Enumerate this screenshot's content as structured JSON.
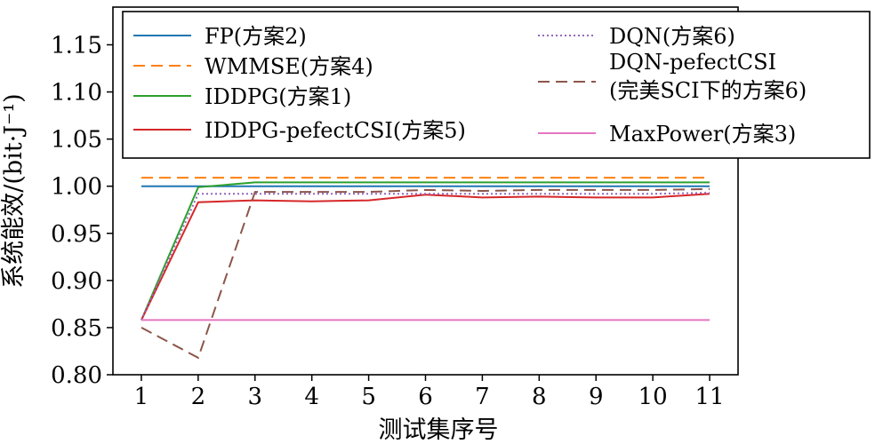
{
  "chart_data": {
    "type": "line",
    "title": "",
    "xlabel": "测试集序号",
    "ylabel": "系统能效/(bit·J⁻¹)",
    "x": [
      1,
      2,
      3,
      4,
      5,
      6,
      7,
      8,
      9,
      10,
      11
    ],
    "xlim": [
      0.5,
      11.5
    ],
    "ylim": [
      0.8,
      1.19
    ],
    "x_ticks": [
      "1",
      "2",
      "3",
      "4",
      "5",
      "6",
      "7",
      "8",
      "9",
      "10",
      "11"
    ],
    "y_ticks": [
      "0.80",
      "0.85",
      "0.90",
      "0.95",
      "1.00",
      "1.05",
      "1.10",
      "1.15"
    ],
    "grid": false,
    "legend_position": "top",
    "series": [
      {
        "name": "FP(方案2)",
        "color": "#1f77b4",
        "dash": "solid",
        "values": [
          1.0,
          1.0,
          1.0,
          1.0,
          1.0,
          1.0,
          1.0,
          1.0,
          1.0,
          1.0,
          1.0
        ]
      },
      {
        "name": "WMMSE(方案4)",
        "color": "#ff7f0e",
        "dash": "dashed",
        "values": [
          1.009,
          1.009,
          1.009,
          1.009,
          1.009,
          1.009,
          1.009,
          1.009,
          1.009,
          1.009,
          1.009
        ]
      },
      {
        "name": "IDDPG(方案1)",
        "color": "#2ca02c",
        "dash": "solid",
        "values": [
          0.858,
          0.999,
          1.004,
          1.004,
          1.004,
          1.004,
          1.004,
          1.004,
          1.004,
          1.004,
          1.004
        ]
      },
      {
        "name": "IDDPG-pefectCSI(方案5)",
        "color": "#d62728",
        "dash": "solid",
        "values": [
          0.858,
          0.983,
          0.985,
          0.984,
          0.985,
          0.991,
          0.988,
          0.989,
          0.988,
          0.988,
          0.992
        ]
      },
      {
        "name": "DQN(方案6)",
        "color": "#9467bd",
        "dash": "dotted",
        "values": [
          0.858,
          0.992,
          0.992,
          0.992,
          0.992,
          0.992,
          0.992,
          0.992,
          0.992,
          0.992,
          0.993
        ]
      },
      {
        "name": "DQN-pefectCSI\n(完美SCI下的方案6)",
        "color": "#8c564b",
        "dash": "dashed",
        "values": [
          0.85,
          0.818,
          0.994,
          0.994,
          0.994,
          0.996,
          0.995,
          0.996,
          0.996,
          0.996,
          0.997
        ]
      },
      {
        "name": "MaxPower(方案3)",
        "color": "#e377c2",
        "dash": "solid",
        "values": [
          0.858,
          0.858,
          0.858,
          0.858,
          0.858,
          0.858,
          0.858,
          0.858,
          0.858,
          0.858,
          0.858
        ]
      }
    ]
  }
}
